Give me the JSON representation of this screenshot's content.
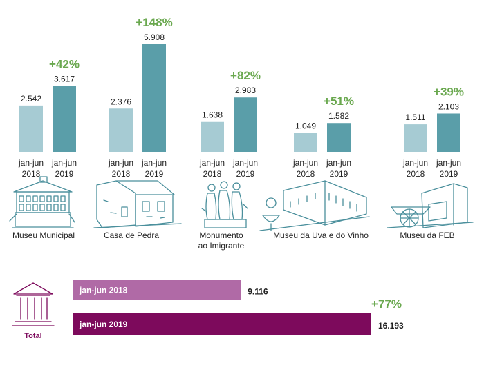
{
  "colors": {
    "bar_2018": "#a6cbd3",
    "bar_2019": "#5a9ea9",
    "increase": "#6aa84f",
    "total_2018": "#b06aa6",
    "total_2019": "#7d0a5c",
    "illustration": "#4a8f9c"
  },
  "chart_data": [
    {
      "type": "bar",
      "categories": [
        "Museu Municipal",
        "Casa de Pedra",
        "Monumento ao Imigrante",
        "Museu da Uva e do Vinho",
        "Museu da FEB"
      ],
      "x_tick_labels": [
        [
          "jan-jun",
          "2018"
        ],
        [
          "jan-jun",
          "2019"
        ]
      ],
      "series": [
        {
          "name": "jan-jun 2018",
          "values": [
            2542,
            2376,
            1638,
            1049,
            1511
          ],
          "labels": [
            "2.542",
            "2.376",
            "1.638",
            "1.049",
            "1.511"
          ]
        },
        {
          "name": "jan-jun 2019",
          "values": [
            3617,
            5908,
            2983,
            1582,
            2103
          ],
          "labels": [
            "3.617",
            "5.908",
            "2.983",
            "1.582",
            "2.103"
          ]
        }
      ],
      "changes": [
        "+42%",
        "+148%",
        "+82%",
        "+51%",
        "+39%"
      ],
      "museum_labels": [
        [
          "Museu Municipal"
        ],
        [
          "Casa de Pedra"
        ],
        [
          "Monumento",
          "ao Imigrante"
        ],
        [
          "Museu da Uva e do Vinho"
        ],
        [
          "Museu da FEB"
        ]
      ],
      "icons": [
        "museum-building-illustration",
        "stone-house-illustration",
        "immigrant-statue-illustration",
        "wine-museum-illustration",
        "feb-museum-illustration"
      ]
    },
    {
      "type": "bar",
      "orientation": "horizontal",
      "title": "Total",
      "categories": [
        "jan-jun 2018",
        "jan-jun 2019"
      ],
      "values": [
        9116,
        16193
      ],
      "value_labels": [
        "9.116",
        "16.193"
      ],
      "change": "+77%",
      "icon": "museum-columns-icon"
    }
  ]
}
